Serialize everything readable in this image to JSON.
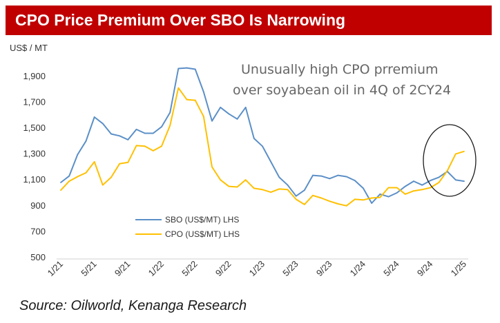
{
  "title": "CPO Price Premium Over SBO Is Narrowing",
  "source": "Source: Oilworld, Kenanga Research",
  "chart_data": {
    "type": "line",
    "ylabel": "US$ / MT",
    "ylim": [
      500,
      2000
    ],
    "yticks": [
      500,
      700,
      900,
      1100,
      1300,
      1500,
      1700,
      1900
    ],
    "ytick_labels": [
      "500",
      "700",
      "900",
      "1,100",
      "1,300",
      "1,500",
      "1,700",
      "1,900"
    ],
    "grid": false,
    "x_start": "1/21",
    "x_end": "1/25",
    "xticks": [
      "1/21",
      "5/21",
      "9/21",
      "1/22",
      "5/22",
      "9/22",
      "1/23",
      "5/23",
      "9/23",
      "1/24",
      "5/24",
      "9/24",
      "1/25"
    ],
    "x": [
      "1/21",
      "2/21",
      "3/21",
      "4/21",
      "5/21",
      "6/21",
      "7/21",
      "8/21",
      "9/21",
      "10/21",
      "11/21",
      "12/21",
      "1/22",
      "2/22",
      "3/22",
      "4/22",
      "5/22",
      "6/22",
      "7/22",
      "8/22",
      "9/22",
      "10/22",
      "11/22",
      "12/22",
      "1/23",
      "2/23",
      "3/23",
      "4/23",
      "5/23",
      "6/23",
      "7/23",
      "8/23",
      "9/23",
      "10/23",
      "11/23",
      "12/23",
      "1/24",
      "2/24",
      "3/24",
      "4/24",
      "5/24",
      "6/24",
      "7/24",
      "8/24",
      "9/24",
      "10/24",
      "11/24",
      "12/24",
      "1/25"
    ],
    "series": [
      {
        "name": "SBO (US$/MT) LHS",
        "color": "#5b8fc7",
        "values": [
          1080,
          1130,
          1295,
          1400,
          1585,
          1535,
          1455,
          1440,
          1410,
          1490,
          1460,
          1460,
          1510,
          1620,
          1960,
          1965,
          1955,
          1780,
          1555,
          1660,
          1610,
          1570,
          1660,
          1420,
          1360,
          1240,
          1120,
          1060,
          975,
          1020,
          1135,
          1130,
          1110,
          1135,
          1125,
          1095,
          1035,
          920,
          990,
          970,
          1000,
          1050,
          1090,
          1060,
          1095,
          1120,
          1165,
          1100,
          1090
        ]
      },
      {
        "name": "CPO (US$/MT) LHS",
        "color": "#ffc000",
        "values": [
          1020,
          1090,
          1125,
          1155,
          1240,
          1060,
          1120,
          1225,
          1235,
          1365,
          1360,
          1325,
          1360,
          1520,
          1810,
          1720,
          1715,
          1590,
          1200,
          1100,
          1050,
          1045,
          1100,
          1035,
          1025,
          1005,
          1030,
          1025,
          950,
          910,
          980,
          960,
          935,
          915,
          900,
          950,
          945,
          960,
          965,
          1040,
          1040,
          990,
          1015,
          1025,
          1040,
          1080,
          1170,
          1300,
          1320
        ]
      }
    ],
    "annotation": [
      "Unusually high CPO prremium",
      "over soyabean oil in 4Q of 2CY24"
    ]
  }
}
